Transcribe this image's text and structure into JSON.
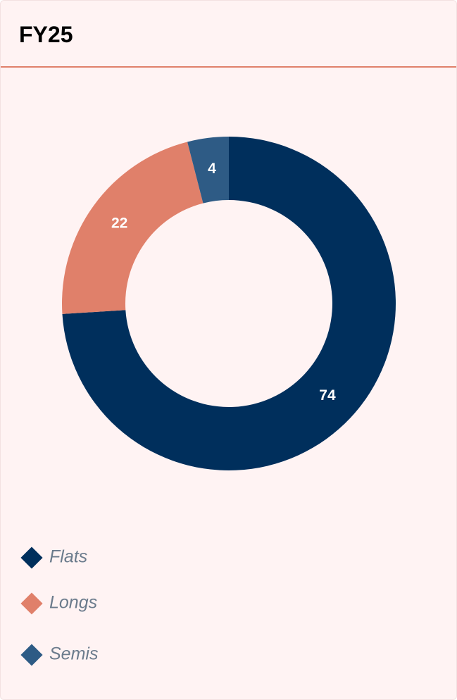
{
  "chart_data": {
    "type": "donut",
    "title": "FY25",
    "series": [
      {
        "name": "Flats",
        "color": "#002f5c",
        "values": [
          74
        ]
      },
      {
        "name": "Longs",
        "color": "#e0806a",
        "values": [
          22
        ]
      },
      {
        "name": "Semis",
        "color": "#2e5b85",
        "values": [
          4
        ]
      }
    ]
  }
}
